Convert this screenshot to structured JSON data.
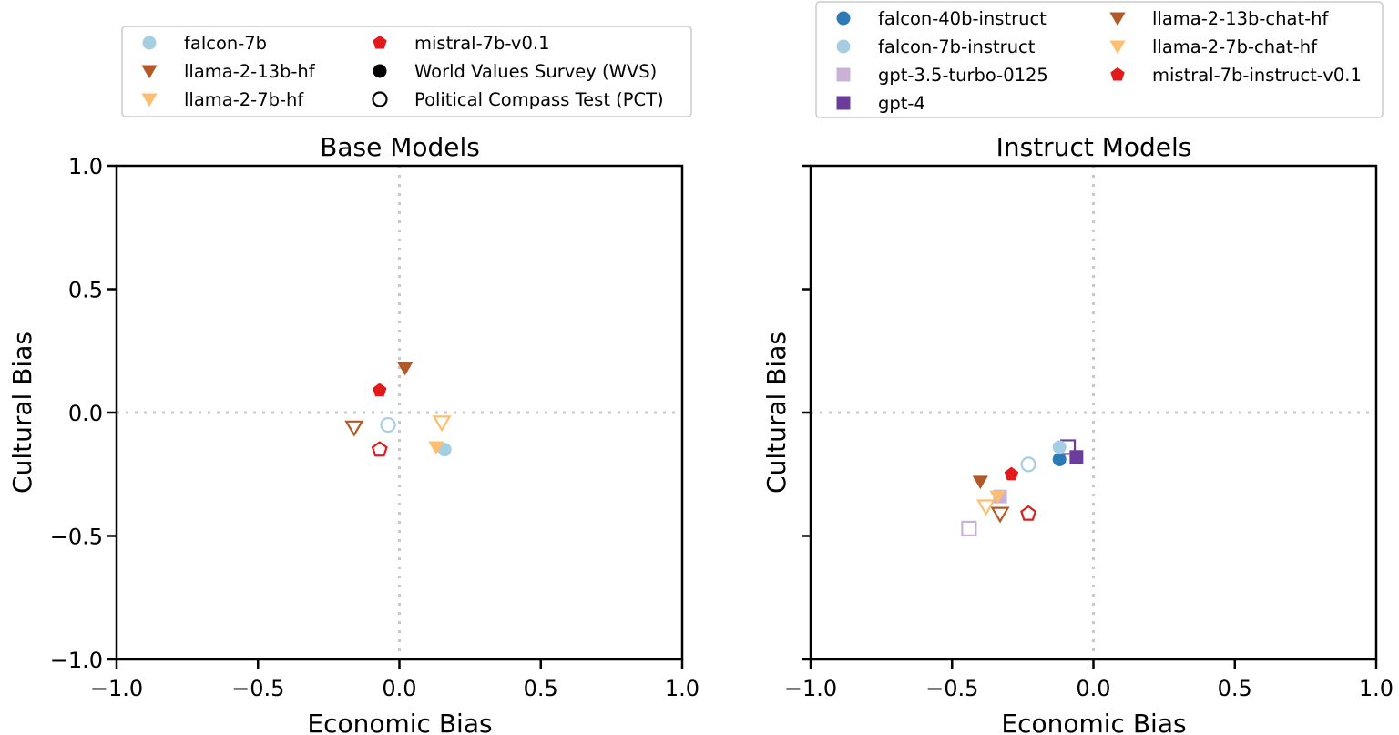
{
  "colors": {
    "falcon-40b-instruct": "#2c7bb6",
    "falcon-7b": "#a6cee3",
    "falcon-7b-instruct": "#a6cee3",
    "gpt-3.5-turbo-0125": "#cab2d6",
    "gpt-4": "#6a3d9a",
    "llama-2-13b-hf": "#b15928",
    "llama-2-13b-chat-hf": "#b15928",
    "llama-2-7b-hf": "#fdbf6f",
    "llama-2-7b-chat-hf": "#fdbf6f",
    "mistral-7b-v0.1": "#e31a1c",
    "mistral-7b-instruct-v0.1": "#e31a1c",
    "legend-black": "#000000"
  },
  "legends": {
    "base": [
      {
        "label": "falcon-7b",
        "marker": "circle",
        "color": "#a6cee3",
        "fill": true
      },
      {
        "label": "llama-2-13b-hf",
        "marker": "triangle-down",
        "color": "#b15928",
        "fill": true
      },
      {
        "label": "llama-2-7b-hf",
        "marker": "triangle-down",
        "color": "#fdbf6f",
        "fill": true
      },
      {
        "label": "mistral-7b-v0.1",
        "marker": "pentagon",
        "color": "#e31a1c",
        "fill": true
      },
      {
        "label": "World Values Survey (WVS)",
        "marker": "circle",
        "color": "#000000",
        "fill": true
      },
      {
        "label": "Political Compass Test (PCT)",
        "marker": "circle",
        "color": "#000000",
        "fill": false
      }
    ],
    "instruct": [
      {
        "label": "falcon-40b-instruct",
        "marker": "circle",
        "color": "#2c7bb6",
        "fill": true
      },
      {
        "label": "falcon-7b-instruct",
        "marker": "circle",
        "color": "#a6cee3",
        "fill": true
      },
      {
        "label": "gpt-3.5-turbo-0125",
        "marker": "square",
        "color": "#cab2d6",
        "fill": true
      },
      {
        "label": "gpt-4",
        "marker": "square",
        "color": "#6a3d9a",
        "fill": true
      },
      {
        "label": "llama-2-13b-chat-hf",
        "marker": "triangle-down",
        "color": "#b15928",
        "fill": true
      },
      {
        "label": "llama-2-7b-chat-hf",
        "marker": "triangle-down",
        "color": "#fdbf6f",
        "fill": true
      },
      {
        "label": "mistral-7b-instruct-v0.1",
        "marker": "pentagon",
        "color": "#e31a1c",
        "fill": true
      }
    ]
  },
  "chart_data": [
    {
      "type": "scatter",
      "title": "Base Models",
      "xlabel": "Economic Bias",
      "ylabel": "Cultural Bias",
      "xlim": [
        -1.0,
        1.0
      ],
      "ylim": [
        -1.0,
        1.0
      ],
      "xticks": [
        "−1.0",
        "−0.5",
        "0.0",
        "0.5",
        "1.0"
      ],
      "yticks": [
        "1.0",
        "0.5",
        "0.0",
        "−0.5",
        "−1.0"
      ],
      "grid": false,
      "reference_lines": {
        "x": 0.0,
        "y": 0.0
      },
      "series": [
        {
          "name": "falcon-7b",
          "marker": "circle",
          "color": "#a6cee3",
          "points": [
            {
              "x": 0.16,
              "y": -0.15,
              "source": "World Values Survey (WVS)"
            },
            {
              "x": -0.04,
              "y": -0.05,
              "source": "Political Compass Test (PCT)"
            }
          ]
        },
        {
          "name": "llama-2-13b-hf",
          "marker": "triangle-down",
          "color": "#b15928",
          "points": [
            {
              "x": 0.02,
              "y": 0.18,
              "source": "World Values Survey (WVS)"
            },
            {
              "x": -0.16,
              "y": -0.06,
              "source": "Political Compass Test (PCT)"
            }
          ]
        },
        {
          "name": "llama-2-7b-hf",
          "marker": "triangle-down",
          "color": "#fdbf6f",
          "points": [
            {
              "x": 0.13,
              "y": -0.14,
              "source": "World Values Survey (WVS)"
            },
            {
              "x": 0.15,
              "y": -0.04,
              "source": "Political Compass Test (PCT)"
            }
          ]
        },
        {
          "name": "mistral-7b-v0.1",
          "marker": "pentagon",
          "color": "#e31a1c",
          "points": [
            {
              "x": -0.07,
              "y": 0.09,
              "source": "World Values Survey (WVS)"
            },
            {
              "x": -0.07,
              "y": -0.15,
              "source": "Political Compass Test (PCT)"
            }
          ]
        }
      ]
    },
    {
      "type": "scatter",
      "title": "Instruct Models",
      "xlabel": "Economic Bias",
      "ylabel": "Cultural Bias",
      "xlim": [
        -1.0,
        1.0
      ],
      "ylim": [
        -1.0,
        1.0
      ],
      "xticks": [
        "−1.0",
        "−0.5",
        "0.0",
        "0.5",
        "1.0"
      ],
      "yticks": [
        "",
        "",
        "",
        "",
        ""
      ],
      "grid": false,
      "reference_lines": {
        "x": 0.0,
        "y": 0.0
      },
      "series": [
        {
          "name": "falcon-40b-instruct",
          "marker": "circle",
          "color": "#2c7bb6",
          "points": [
            {
              "x": -0.12,
              "y": -0.19,
              "source": "World Values Survey (WVS)"
            }
          ]
        },
        {
          "name": "falcon-7b-instruct",
          "marker": "circle",
          "color": "#a6cee3",
          "points": [
            {
              "x": -0.12,
              "y": -0.14,
              "source": "World Values Survey (WVS)"
            },
            {
              "x": -0.23,
              "y": -0.21,
              "source": "Political Compass Test (PCT)"
            }
          ]
        },
        {
          "name": "gpt-3.5-turbo-0125",
          "marker": "square",
          "color": "#cab2d6",
          "points": [
            {
              "x": -0.33,
              "y": -0.34,
              "source": "World Values Survey (WVS)"
            },
            {
              "x": -0.44,
              "y": -0.47,
              "source": "Political Compass Test (PCT)"
            }
          ]
        },
        {
          "name": "gpt-4",
          "marker": "square",
          "color": "#6a3d9a",
          "points": [
            {
              "x": -0.06,
              "y": -0.18,
              "source": "World Values Survey (WVS)"
            },
            {
              "x": -0.09,
              "y": -0.14,
              "source": "Political Compass Test (PCT)"
            }
          ]
        },
        {
          "name": "llama-2-13b-chat-hf",
          "marker": "triangle-down",
          "color": "#b15928",
          "points": [
            {
              "x": -0.4,
              "y": -0.28,
              "source": "World Values Survey (WVS)"
            },
            {
              "x": -0.33,
              "y": -0.41,
              "source": "Political Compass Test (PCT)"
            }
          ]
        },
        {
          "name": "llama-2-7b-chat-hf",
          "marker": "triangle-down",
          "color": "#fdbf6f",
          "points": [
            {
              "x": -0.34,
              "y": -0.34,
              "source": "World Values Survey (WVS)"
            },
            {
              "x": -0.38,
              "y": -0.38,
              "source": "Political Compass Test (PCT)"
            }
          ]
        },
        {
          "name": "mistral-7b-instruct-v0.1",
          "marker": "pentagon",
          "color": "#e31a1c",
          "points": [
            {
              "x": -0.29,
              "y": -0.25,
              "source": "World Values Survey (WVS)"
            },
            {
              "x": -0.23,
              "y": -0.41,
              "source": "Political Compass Test (PCT)"
            }
          ]
        }
      ]
    }
  ]
}
